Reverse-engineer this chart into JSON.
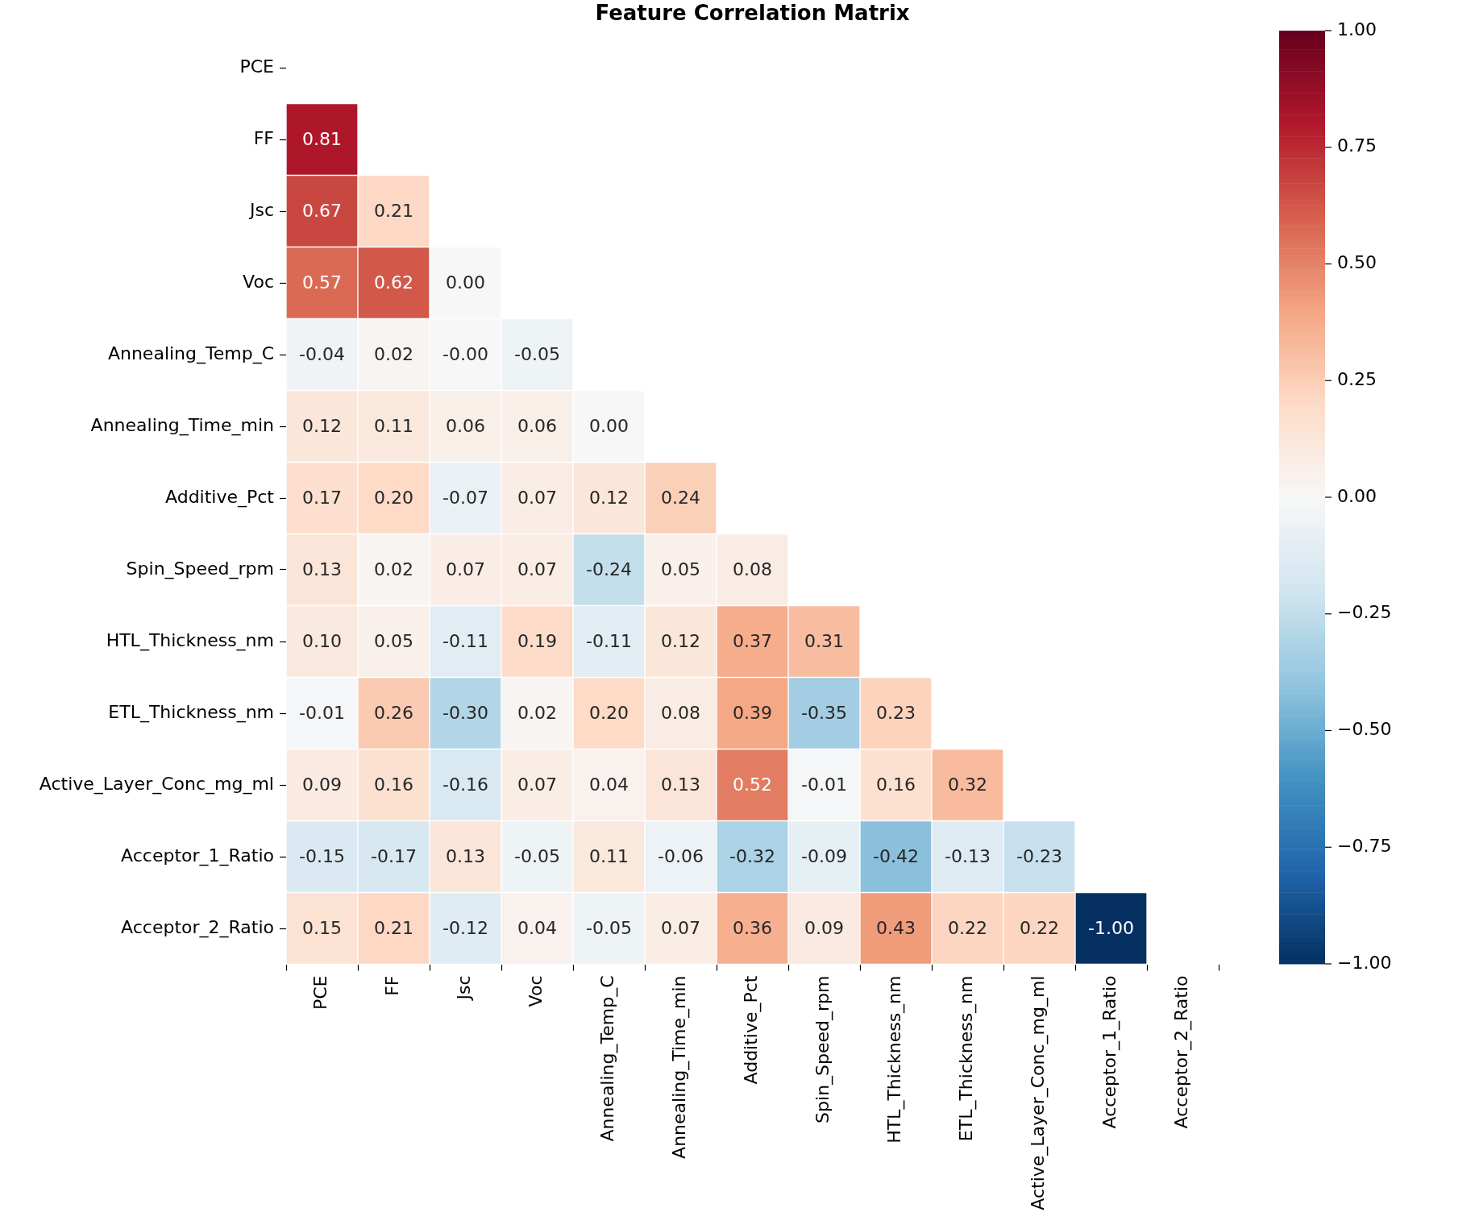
{
  "chart_data": {
    "type": "heatmap",
    "title": "Feature Correlation Matrix",
    "categories": [
      "PCE",
      "FF",
      "Jsc",
      "Voc",
      "Annealing_Temp_C",
      "Annealing_Time_min",
      "Additive_Pct",
      "Spin_Speed_rpm",
      "HTL_Thickness_nm",
      "ETL_Thickness_nm",
      "Active_Layer_Conc_mg_ml",
      "Acceptor_1_Ratio",
      "Acceptor_2_Ratio"
    ],
    "y_categories": [
      "PCE",
      "FF",
      "Jsc",
      "Voc",
      "Annealing_Temp_C",
      "Annealing_Time_min",
      "Additive_Pct",
      "Spin_Speed_rpm",
      "HTL_Thickness_nm",
      "ETL_Thickness_nm",
      "Active_Layer_Conc_mg_ml",
      "Acceptor_1_Ratio",
      "Acceptor_2_Ratio"
    ],
    "cells": [
      [
        null,
        null,
        null,
        null,
        null,
        null,
        null,
        null,
        null,
        null,
        null,
        null,
        null
      ],
      [
        0.81,
        null,
        null,
        null,
        null,
        null,
        null,
        null,
        null,
        null,
        null,
        null,
        null
      ],
      [
        0.67,
        0.21,
        null,
        null,
        null,
        null,
        null,
        null,
        null,
        null,
        null,
        null,
        null
      ],
      [
        0.57,
        0.62,
        0.0,
        null,
        null,
        null,
        null,
        null,
        null,
        null,
        null,
        null,
        null
      ],
      [
        -0.04,
        0.02,
        0.0,
        -0.05,
        null,
        null,
        null,
        null,
        null,
        null,
        null,
        null,
        null
      ],
      [
        0.12,
        0.11,
        0.06,
        0.06,
        0.0,
        null,
        null,
        null,
        null,
        null,
        null,
        null,
        null
      ],
      [
        0.17,
        0.2,
        -0.07,
        0.07,
        0.12,
        0.24,
        null,
        null,
        null,
        null,
        null,
        null,
        null
      ],
      [
        0.13,
        0.02,
        0.07,
        0.07,
        -0.24,
        0.05,
        0.08,
        null,
        null,
        null,
        null,
        null,
        null
      ],
      [
        0.1,
        0.05,
        -0.11,
        0.19,
        -0.11,
        0.12,
        0.37,
        0.31,
        null,
        null,
        null,
        null,
        null
      ],
      [
        -0.01,
        0.26,
        -0.3,
        0.02,
        0.2,
        0.08,
        0.39,
        -0.35,
        0.23,
        null,
        null,
        null,
        null
      ],
      [
        0.09,
        0.16,
        -0.16,
        0.07,
        0.04,
        0.13,
        0.52,
        -0.01,
        0.16,
        0.32,
        null,
        null,
        null
      ],
      [
        -0.15,
        -0.17,
        0.13,
        -0.05,
        0.11,
        -0.06,
        -0.32,
        -0.09,
        -0.42,
        -0.13,
        -0.23,
        null,
        null
      ],
      [
        0.15,
        0.21,
        -0.12,
        0.04,
        -0.05,
        0.07,
        0.36,
        0.09,
        0.43,
        0.22,
        0.22,
        -1.0,
        null
      ]
    ],
    "cell_labels": [
      [
        null,
        null,
        null,
        null,
        null,
        null,
        null,
        null,
        null,
        null,
        null,
        null,
        null
      ],
      [
        "0.81",
        null,
        null,
        null,
        null,
        null,
        null,
        null,
        null,
        null,
        null,
        null,
        null
      ],
      [
        "0.67",
        "0.21",
        null,
        null,
        null,
        null,
        null,
        null,
        null,
        null,
        null,
        null,
        null
      ],
      [
        "0.57",
        "0.62",
        "0.00",
        null,
        null,
        null,
        null,
        null,
        null,
        null,
        null,
        null,
        null
      ],
      [
        "-0.04",
        "0.02",
        "-0.00",
        "-0.05",
        null,
        null,
        null,
        null,
        null,
        null,
        null,
        null,
        null
      ],
      [
        "0.12",
        "0.11",
        "0.06",
        "0.06",
        "0.00",
        null,
        null,
        null,
        null,
        null,
        null,
        null,
        null
      ],
      [
        "0.17",
        "0.20",
        "-0.07",
        "0.07",
        "0.12",
        "0.24",
        null,
        null,
        null,
        null,
        null,
        null,
        null
      ],
      [
        "0.13",
        "0.02",
        "0.07",
        "0.07",
        "-0.24",
        "0.05",
        "0.08",
        null,
        null,
        null,
        null,
        null,
        null
      ],
      [
        "0.10",
        "0.05",
        "-0.11",
        "0.19",
        "-0.11",
        "0.12",
        "0.37",
        "0.31",
        null,
        null,
        null,
        null,
        null
      ],
      [
        "-0.01",
        "0.26",
        "-0.30",
        "0.02",
        "0.20",
        "0.08",
        "0.39",
        "-0.35",
        "0.23",
        null,
        null,
        null,
        null
      ],
      [
        "0.09",
        "0.16",
        "-0.16",
        "0.07",
        "0.04",
        "0.13",
        "0.52",
        "-0.01",
        "0.16",
        "0.32",
        null,
        null,
        null
      ],
      [
        "-0.15",
        "-0.17",
        "0.13",
        "-0.05",
        "0.11",
        "-0.06",
        "-0.32",
        "-0.09",
        "-0.42",
        "-0.13",
        "-0.23",
        null,
        null
      ],
      [
        "0.15",
        "0.21",
        "-0.12",
        "0.04",
        "-0.05",
        "0.07",
        "0.36",
        "0.09",
        "0.43",
        "0.22",
        "0.22",
        "-1.00",
        null
      ]
    ],
    "clim": [
      -1,
      1
    ],
    "cticks": [
      {
        "value": -1,
        "label": "−1.00"
      },
      {
        "value": -0.75,
        "label": "−0.75"
      },
      {
        "value": -0.5,
        "label": "−0.50"
      },
      {
        "value": -0.25,
        "label": "−0.25"
      },
      {
        "value": 0,
        "label": "0.00"
      },
      {
        "value": 0.25,
        "label": "0.25"
      },
      {
        "value": 0.5,
        "label": "0.50"
      },
      {
        "value": 0.75,
        "label": "0.75"
      },
      {
        "value": 1,
        "label": "1.00"
      }
    ]
  }
}
